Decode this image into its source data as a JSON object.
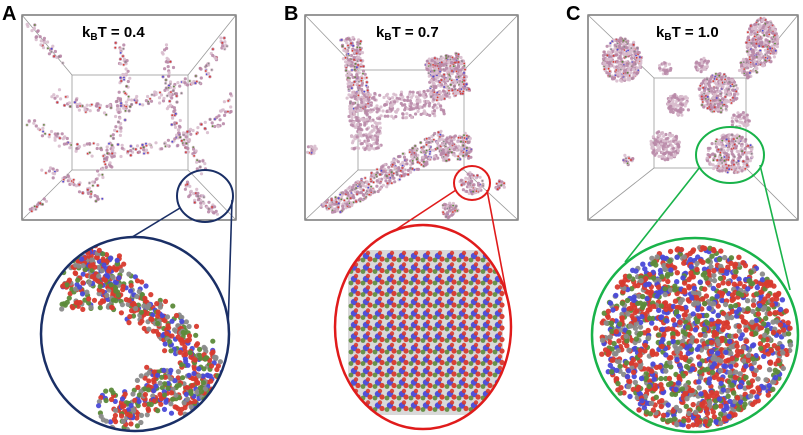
{
  "panels": [
    {
      "letter": "A",
      "temperature_label": {
        "k": "k",
        "sub": "B",
        "rest": "T = 0.4"
      },
      "morphology": "branched-network",
      "zoom_circle_color": "#1a2f66"
    },
    {
      "letter": "B",
      "temperature_label": {
        "k": "k",
        "sub": "B",
        "rest": "T = 0.7"
      },
      "morphology": "crystalline-slabs",
      "zoom_circle_color": "#e01b1b"
    },
    {
      "letter": "C",
      "temperature_label": {
        "k": "k",
        "sub": "B",
        "rest": "T = 1.0"
      },
      "morphology": "spherical-droplets",
      "zoom_circle_color": "#19b34a"
    }
  ],
  "colors": {
    "box_edge": "#6e6e6e",
    "cluster_pink": "#b98aa8",
    "cluster_pink_light": "#d8bccd",
    "atom_blue": "#4a4ad8",
    "atom_red": "#d83a2e",
    "atom_green": "#5c8a3a",
    "atom_gray": "#8a8a8a"
  }
}
